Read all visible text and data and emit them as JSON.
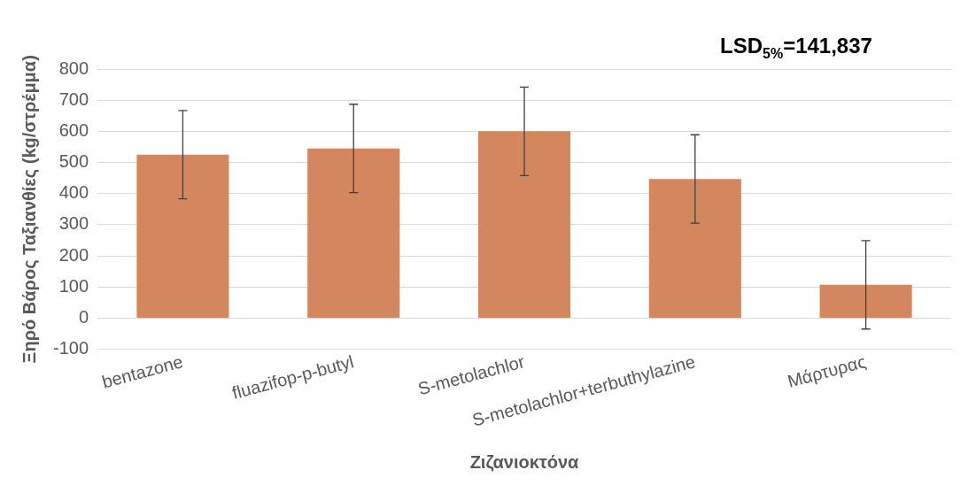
{
  "chart_data": {
    "type": "bar",
    "xlabel": "Ζιζανιοκτόνα",
    "ylabel": "Ξηρό Βάρος Ταξιανθίες (kg/στρέμμα)",
    "categories": [
      "bentazone",
      "fluazifop-p-butyl",
      "S-metolachlor",
      "S-metolachlor+terbuthylazine",
      "Μάρτυρας"
    ],
    "series": [
      {
        "color": "#d4875e",
        "values": [
          525,
          545,
          600,
          447,
          107
        ],
        "errors": [
          142,
          142,
          142,
          142,
          142
        ]
      }
    ],
    "ylim": [
      -100,
      800
    ],
    "yticks": [
      -100,
      0,
      100,
      200,
      300,
      400,
      500,
      600,
      700,
      800
    ],
    "grid": "y",
    "legend": false,
    "annotations": [
      "LSD$_{5%}$=141,837"
    ]
  }
}
